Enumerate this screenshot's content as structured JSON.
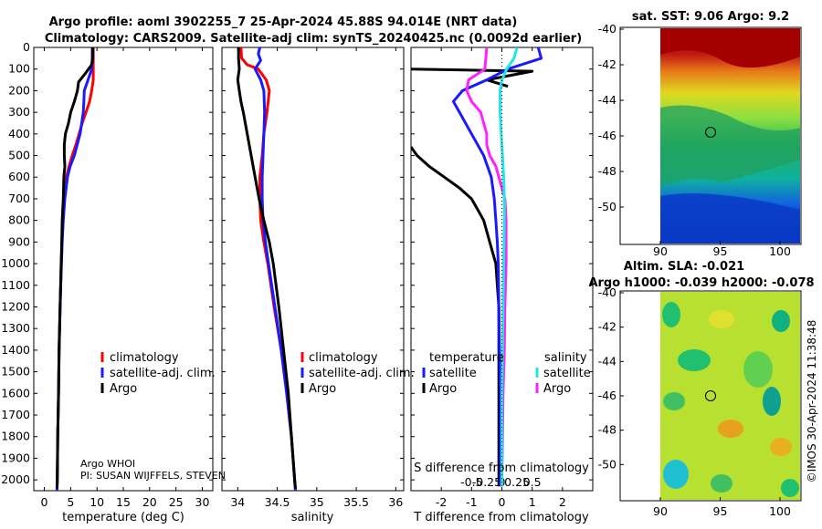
{
  "header": {
    "line1": "Argo profile: aoml 3902255_7 25-Apr-2024 45.88S 94.014E (NRT data)",
    "line2": "Climatology: CARS2009. Satellite-adj clim: synTS_20240425.nc (0.0092d earlier)"
  },
  "colors": {
    "argo": "#000000",
    "clim": "#ff0000",
    "sat": "#1a1aff",
    "t_sat": "#1a1aff",
    "s_sat": "#22e5e5",
    "s_argo": "#ff22ff"
  },
  "legend_clim": [
    "climatology",
    "satellite-adj. clim.",
    "Argo"
  ],
  "legend_diff": {
    "t_head": "temperature",
    "s_head": "salinity",
    "sat": "satellite",
    "argo": "Argo"
  },
  "notes": {
    "agency": "Argo WHOI",
    "pi": "PI: SUSAN WIJFFELS, STEVEN"
  },
  "maps": {
    "sst_title": "sat. SST: 9.06 Argo: 9.2",
    "sla_title1": "Altim. SLA: -0.021",
    "sla_title2": "Argo h1000: -0.039 h2000: -0.078",
    "lat_ticks": [
      "-40",
      "-42",
      "-44",
      "-46",
      "-48",
      "-50"
    ],
    "lon_ticks": [
      "90",
      "95",
      "100"
    ],
    "float_lon": 94.014,
    "float_lat": -45.88
  },
  "stamp": "©IMOS 30-Apr-2024 11:38:48",
  "chart_data": [
    {
      "type": "line",
      "title": "",
      "xlabel": "temperature (deg C)",
      "ylabel": "",
      "xlim": [
        -2,
        32
      ],
      "ylim": [
        2050,
        0
      ],
      "xticks": [
        "0",
        "5",
        "10",
        "15",
        "20",
        "25",
        "30"
      ],
      "yticks": [
        "0",
        "100",
        "200",
        "300",
        "400",
        "500",
        "600",
        "700",
        "800",
        "900",
        "1000",
        "1100",
        "1200",
        "1300",
        "1400",
        "1500",
        "1600",
        "1700",
        "1800",
        "1900",
        "2000"
      ],
      "series": [
        {
          "name": "climatology",
          "depth": [
            0,
            50,
            100,
            150,
            200,
            250,
            300,
            350,
            400,
            450,
            500,
            550,
            600,
            700,
            800,
            900,
            1000,
            1200,
            1400,
            1600,
            1800,
            2000,
            2050
          ],
          "values": [
            9.3,
            9.3,
            9.3,
            9.3,
            9.0,
            8.6,
            7.9,
            7.2,
            6.6,
            6.0,
            5.3,
            4.7,
            4.2,
            3.8,
            3.5,
            3.35,
            3.2,
            3.0,
            2.8,
            2.7,
            2.55,
            2.45,
            2.4
          ]
        },
        {
          "name": "satellite-adj. clim.",
          "depth": [
            0,
            50,
            100,
            150,
            200,
            250,
            300,
            400,
            500,
            550,
            600,
            700,
            800,
            900,
            1000,
            1200,
            1400,
            1600,
            1800,
            2000,
            2050
          ],
          "values": [
            9.1,
            9.1,
            9.0,
            8.3,
            7.6,
            7.5,
            7.4,
            6.8,
            5.7,
            4.9,
            4.4,
            3.9,
            3.6,
            3.4,
            3.25,
            3.0,
            2.8,
            2.7,
            2.55,
            2.45,
            2.4
          ]
        },
        {
          "name": "Argo",
          "depth": [
            0,
            50,
            80,
            120,
            160,
            200,
            250,
            300,
            350,
            400,
            450,
            500,
            550,
            600,
            700,
            800,
            900,
            1000,
            1100,
            1200,
            1400,
            1600,
            1800,
            2000,
            2040
          ],
          "values": [
            9.2,
            9.2,
            9.0,
            7.8,
            6.5,
            6.3,
            5.7,
            5.0,
            4.6,
            4.0,
            3.8,
            3.8,
            3.9,
            3.7,
            3.6,
            3.4,
            3.3,
            3.2,
            3.1,
            3.0,
            2.8,
            2.7,
            2.55,
            2.45,
            2.4
          ]
        }
      ]
    },
    {
      "type": "line",
      "title": "",
      "xlabel": "salinity",
      "ylabel": "",
      "xlim": [
        33.8,
        36.1
      ],
      "ylim": [
        2050,
        0
      ],
      "xticks": [
        "34",
        "34.5",
        "35",
        "35.5",
        "36"
      ],
      "series": [
        {
          "name": "climatology",
          "depth": [
            0,
            50,
            80,
            100,
            150,
            200,
            300,
            400,
            500,
            600,
            700,
            800,
            900,
            1000,
            1200,
            1400,
            1600,
            1800,
            2000,
            2050
          ],
          "values": [
            34.04,
            34.05,
            34.12,
            34.26,
            34.36,
            34.4,
            34.37,
            34.33,
            34.31,
            34.28,
            34.28,
            34.29,
            34.33,
            34.38,
            34.46,
            34.55,
            34.62,
            34.68,
            34.72,
            34.73
          ]
        },
        {
          "name": "satellite-adj. clim.",
          "depth": [
            0,
            30,
            60,
            100,
            150,
            200,
            300,
            400,
            500,
            600,
            700,
            800,
            900,
            1000,
            1200,
            1400,
            1600,
            1800,
            2000,
            2050
          ],
          "values": [
            34.28,
            34.26,
            34.29,
            34.22,
            34.29,
            34.33,
            34.34,
            34.33,
            34.32,
            34.31,
            34.31,
            34.32,
            34.35,
            34.39,
            34.47,
            34.55,
            34.62,
            34.68,
            34.72,
            34.73
          ]
        },
        {
          "name": "Argo",
          "depth": [
            0,
            50,
            100,
            150,
            200,
            250,
            300,
            400,
            500,
            600,
            700,
            800,
            900,
            1000,
            1200,
            1400,
            1600,
            1800,
            2000,
            2040
          ],
          "values": [
            34.01,
            34.01,
            34.02,
            34.0,
            34.02,
            34.04,
            34.07,
            34.12,
            34.17,
            34.22,
            34.27,
            34.33,
            34.4,
            34.45,
            34.52,
            34.58,
            34.64,
            34.68,
            34.72,
            34.73
          ]
        }
      ]
    },
    {
      "type": "line",
      "title": "",
      "xlabel": "T difference from climatology",
      "xlabel_top": "S difference from climatology",
      "ylabel": "",
      "xlim": [
        -3,
        3
      ],
      "xticks": [
        "-2",
        "-1",
        "0",
        "1",
        "2"
      ],
      "s_ticks": [
        "-0.5",
        "-0.25",
        "0",
        "0.25",
        "0.5"
      ],
      "ylim": [
        2050,
        0
      ],
      "series": [
        {
          "name": "temperature Argo",
          "depth": [
            100,
            110,
            150,
            180
          ],
          "values": [
            -3.0,
            1.0,
            -0.5,
            0.2
          ]
        },
        {
          "name": "temperature Argo (deep)",
          "depth": [
            460,
            500,
            550,
            600,
            650,
            700,
            750,
            800,
            850,
            900,
            950,
            1000,
            1100,
            1200,
            1400,
            1600,
            1800,
            2000,
            2030
          ],
          "values": [
            -3.0,
            -2.8,
            -2.4,
            -1.9,
            -1.4,
            -1.0,
            -0.8,
            -0.6,
            -0.5,
            -0.4,
            -0.3,
            -0.2,
            -0.15,
            -0.1,
            -0.1,
            -0.1,
            -0.1,
            -0.1,
            -0.1
          ]
        },
        {
          "name": "temperature satellite",
          "depth": [
            0,
            50,
            100,
            150,
            200,
            250,
            300,
            400,
            500,
            600,
            700,
            800,
            900,
            1000,
            1200,
            1400,
            1600,
            1800,
            2000,
            2030
          ],
          "values": [
            1.2,
            1.3,
            0.2,
            -0.5,
            -1.3,
            -1.6,
            -1.4,
            -1.0,
            -0.6,
            -0.35,
            -0.25,
            -0.2,
            -0.15,
            -0.12,
            -0.1,
            -0.08,
            -0.05,
            -0.05,
            -0.05,
            -0.05
          ]
        },
        {
          "name": "salinity Argo",
          "depth": [
            0,
            100,
            150,
            200,
            250,
            300,
            350,
            400,
            450,
            500,
            550,
            600,
            700,
            800,
            900,
            1000,
            1200,
            1400,
            1600,
            1800,
            2000,
            2030
          ],
          "values": [
            -0.25,
            -0.28,
            -0.55,
            -0.58,
            -0.5,
            -0.35,
            -0.3,
            -0.25,
            -0.25,
            -0.2,
            -0.1,
            -0.05,
            0.05,
            0.07,
            0.07,
            0.07,
            0.05,
            0.04,
            0.02,
            0.01,
            0.0,
            0.0
          ]
        },
        {
          "name": "salinity satellite",
          "depth": [
            0,
            50,
            100,
            150,
            200,
            300,
            400,
            500,
            600,
            700,
            800,
            1000,
            1200,
            1400,
            1600,
            1800,
            2000,
            2030
          ],
          "values": [
            0.25,
            0.2,
            0.08,
            0.0,
            -0.03,
            -0.03,
            -0.01,
            0.01,
            0.03,
            0.04,
            0.04,
            0.03,
            0.02,
            0.01,
            0.0,
            0.0,
            0.0,
            0.0
          ]
        }
      ]
    }
  ]
}
